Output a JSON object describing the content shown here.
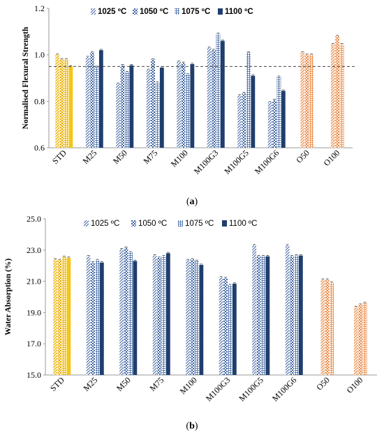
{
  "figure": {
    "palette": {
      "std": "#F5C518",
      "std_dark": "#E8A800",
      "blue_dark": "#1F3E6E",
      "blue_mid": "#3C62A0",
      "blue_light": "#9CB2D6",
      "orange": "#F4A460",
      "orange_dark": "#E8894A"
    },
    "panel_a": {
      "label": "a",
      "chart_data": {
        "type": "bar",
        "ylabel": "Normalised Flexural Strength",
        "ylim": [
          0.6,
          1.2
        ],
        "yticks": [
          "0.6",
          "0.8",
          "1.0",
          "1.2"
        ],
        "grid": false,
        "legend_position": "top",
        "reference_line": 0.95,
        "categories": [
          "STD",
          "M25",
          "M50",
          "M75",
          "M100",
          "M100G3",
          "M100G5",
          "M100G6",
          "O50",
          "O100"
        ],
        "series": [
          {
            "name": "1025 ºC",
            "values": [
              1.0,
              0.99,
              0.875,
              0.935,
              0.97,
              1.03,
              0.825,
              0.795,
              1.01,
              1.045
            ]
          },
          {
            "name": "1050 ºC",
            "values": [
              0.98,
              1.01,
              0.955,
              0.98,
              0.965,
              1.02,
              0.835,
              0.805,
              1.0,
              1.08
            ]
          },
          {
            "name": "1075 ºC",
            "values": [
              0.98,
              0.948,
              0.925,
              0.88,
              0.915,
              1.09,
              1.01,
              0.905,
              1.0,
              1.045
            ]
          },
          {
            "name": "1100 ºC",
            "values": [
              0.95,
              1.02,
              0.955,
              0.945,
              0.96,
              1.06,
              0.91,
              0.845,
              null,
              null
            ]
          }
        ]
      }
    },
    "panel_b": {
      "label": "b",
      "chart_data": {
        "type": "bar",
        "ylabel": "Water Absorption (%)",
        "ylim": [
          15.0,
          25.0
        ],
        "yticks": [
          "15.0",
          "17.0",
          "19.0",
          "21.0",
          "23.0",
          "25.0"
        ],
        "grid": false,
        "legend_position": "top",
        "categories": [
          "STD",
          "M25",
          "M50",
          "M75",
          "M100",
          "M100G3",
          "M100G5",
          "M100G6",
          "O50",
          "O100"
        ],
        "series": [
          {
            "name": "1025 ºC",
            "values": [
              22.4,
              22.6,
              23.05,
              22.65,
              22.35,
              21.25,
              23.3,
              23.3,
              21.1,
              19.35
            ]
          },
          {
            "name": "1050 ºC",
            "values": [
              22.35,
              22.2,
              23.15,
              22.5,
              22.4,
              21.2,
              22.6,
              22.6,
              21.1,
              19.5
            ]
          },
          {
            "name": "1075 ºC",
            "values": [
              22.55,
              22.35,
              22.85,
              22.6,
              22.3,
              20.75,
              22.6,
              22.65,
              20.9,
              19.6
            ]
          },
          {
            "name": "1100 ºC",
            "values": [
              22.5,
              22.2,
              22.3,
              22.8,
              22.05,
              20.85,
              22.6,
              22.65,
              null,
              null
            ]
          }
        ]
      }
    }
  }
}
